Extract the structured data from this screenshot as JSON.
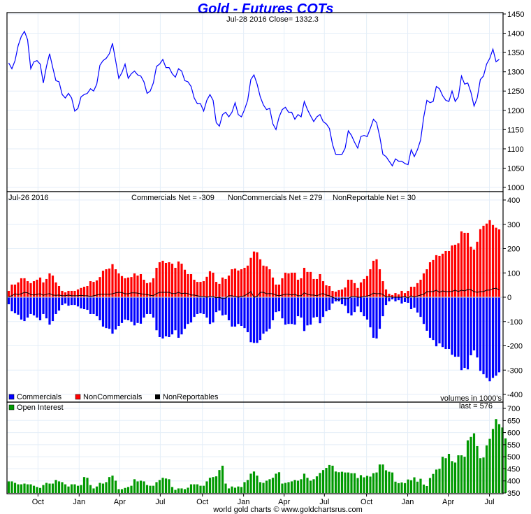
{
  "chart_data": [
    {
      "type": "line",
      "title": "Gold - Futures COTs",
      "subtitle": "Jul-28  2016   Close= 1332.3",
      "ylim": [
        1000,
        1450
      ],
      "yticks": [
        1450,
        1400,
        1350,
        1300,
        1250,
        1200,
        1150,
        1100,
        1050,
        1000
      ],
      "color": "#0000ff",
      "series": [
        {
          "name": "Gold price",
          "values": [
            1323,
            1308,
            1329,
            1368,
            1392,
            1405,
            1383,
            1308,
            1326,
            1329,
            1320,
            1271,
            1314,
            1347,
            1311,
            1277,
            1274,
            1241,
            1232,
            1244,
            1232,
            1198,
            1205,
            1235,
            1241,
            1244,
            1256,
            1250,
            1268,
            1317,
            1329,
            1335,
            1347,
            1374,
            1329,
            1283,
            1298,
            1320,
            1283,
            1295,
            1302,
            1292,
            1289,
            1274,
            1244,
            1250,
            1271,
            1314,
            1320,
            1332,
            1311,
            1311,
            1295,
            1286,
            1308,
            1302,
            1277,
            1274,
            1262,
            1232,
            1217,
            1217,
            1198,
            1226,
            1241,
            1226,
            1168,
            1159,
            1189,
            1195,
            1183,
            1195,
            1220,
            1189,
            1183,
            1202,
            1226,
            1280,
            1292,
            1268,
            1235,
            1214,
            1202,
            1205,
            1165,
            1150,
            1183,
            1202,
            1208,
            1195,
            1195,
            1177,
            1189,
            1183,
            1223,
            1202,
            1186,
            1171,
            1183,
            1189,
            1171,
            1165,
            1153,
            1111,
            1086,
            1086,
            1086,
            1102,
            1147,
            1135,
            1117,
            1102,
            1132,
            1135,
            1132,
            1153,
            1177,
            1168,
            1132,
            1086,
            1080,
            1068,
            1056,
            1074,
            1068,
            1068,
            1062,
            1059,
            1098,
            1080,
            1098,
            1123,
            1183,
            1226,
            1220,
            1223,
            1262,
            1256,
            1238,
            1226,
            1223,
            1250,
            1223,
            1235,
            1289,
            1268,
            1271,
            1247,
            1211,
            1232,
            1280,
            1289,
            1320,
            1335,
            1359,
            1326,
            1332.3
          ]
        }
      ]
    },
    {
      "type": "bar",
      "header_date": "Jul-26  2016",
      "net_labels": [
        "Commercials Net = -309",
        "NonCommercials Net = 279",
        "NonReportable Net = 30"
      ],
      "ylim": [
        -400,
        400
      ],
      "yticks": [
        400,
        300,
        200,
        100,
        0,
        -100,
        -200,
        -300,
        -400
      ],
      "note": "volumes in 1000's",
      "legend": [
        {
          "name": "Commercials",
          "color": "#0000ff"
        },
        {
          "name": "NonCommercials",
          "color": "#ff0000"
        },
        {
          "name": "NonReportables",
          "color": "#000000"
        }
      ],
      "legend_placement": "bottom-left",
      "series": [
        {
          "name": "Commercials",
          "values": [
            -29,
            -58,
            -66,
            -72,
            -92,
            -98,
            -84,
            -69,
            -75,
            -84,
            -95,
            -69,
            -87,
            -113,
            -98,
            -69,
            -55,
            -32,
            -26,
            -35,
            -32,
            -32,
            -38,
            -46,
            -49,
            -52,
            -69,
            -69,
            -78,
            -95,
            -121,
            -127,
            -130,
            -150,
            -133,
            -118,
            -106,
            -92,
            -95,
            -101,
            -116,
            -106,
            -109,
            -84,
            -69,
            -69,
            -84,
            -136,
            -164,
            -170,
            -161,
            -164,
            -153,
            -136,
            -167,
            -153,
            -130,
            -110,
            -104,
            -81,
            -69,
            -66,
            -69,
            -84,
            -110,
            -104,
            -61,
            -55,
            -75,
            -72,
            -95,
            -121,
            -121,
            -110,
            -118,
            -127,
            -144,
            -185,
            -188,
            -188,
            -176,
            -150,
            -141,
            -130,
            -95,
            -61,
            -58,
            -87,
            -113,
            -110,
            -110,
            -113,
            -78,
            -84,
            -139,
            -116,
            -113,
            -84,
            -81,
            -107,
            -81,
            -58,
            -52,
            -26,
            -17,
            -17,
            -29,
            -35,
            -66,
            -75,
            -61,
            -38,
            -61,
            -78,
            -92,
            -124,
            -167,
            -170,
            -130,
            -78,
            -32,
            -17,
            -9,
            -17,
            -12,
            -26,
            -20,
            -23,
            -49,
            -43,
            -63,
            -81,
            -110,
            -138,
            -167,
            -176,
            -202,
            -190,
            -205,
            -213,
            -213,
            -237,
            -245,
            -245,
            -300,
            -291,
            -297,
            -239,
            -219,
            -248,
            -303,
            -317,
            -332,
            -346,
            -332,
            -323,
            -309
          ]
        },
        {
          "name": "NonCommercials",
          "values": [
            26,
            52,
            52,
            61,
            78,
            78,
            66,
            58,
            66,
            72,
            81,
            61,
            75,
            98,
            89,
            61,
            46,
            26,
            20,
            26,
            26,
            26,
            32,
            38,
            43,
            46,
            66,
            63,
            69,
            83,
            109,
            115,
            118,
            136,
            115,
            98,
            87,
            78,
            81,
            83,
            98,
            89,
            95,
            72,
            58,
            61,
            78,
            121,
            144,
            150,
            141,
            144,
            138,
            121,
            147,
            138,
            113,
            95,
            95,
            72,
            63,
            63,
            66,
            84,
            107,
            101,
            63,
            55,
            81,
            75,
            89,
            115,
            118,
            110,
            115,
            121,
            130,
            162,
            188,
            185,
            156,
            130,
            127,
            115,
            81,
            52,
            52,
            78,
            101,
            98,
            101,
            101,
            72,
            78,
            121,
            104,
            104,
            75,
            75,
            95,
            66,
            49,
            46,
            26,
            23,
            29,
            32,
            40,
            72,
            72,
            58,
            38,
            61,
            75,
            87,
            115,
            150,
            156,
            115,
            66,
            32,
            14,
            9,
            17,
            12,
            26,
            17,
            26,
            43,
            43,
            58,
            72,
            98,
            115,
            144,
            153,
            173,
            170,
            179,
            190,
            190,
            213,
            216,
            222,
            271,
            265,
            265,
            208,
            196,
            228,
            280,
            294,
            303,
            317,
            297,
            286,
            279
          ]
        }
      ]
    },
    {
      "type": "bar",
      "legend": [
        {
          "name": "Open Interest",
          "color": "#009900"
        }
      ],
      "last_label": "last = 576",
      "ylim": [
        350,
        700
      ],
      "yticks": [
        700,
        650,
        600,
        550,
        500,
        450,
        400,
        350
      ],
      "series": [
        {
          "name": "Open Interest",
          "values": [
            398,
            398,
            392,
            386,
            386,
            389,
            386,
            386,
            380,
            375,
            371,
            383,
            392,
            389,
            389,
            404,
            398,
            395,
            386,
            377,
            386,
            386,
            380,
            383,
            416,
            413,
            383,
            369,
            377,
            392,
            389,
            395,
            416,
            422,
            401,
            366,
            366,
            371,
            375,
            380,
            407,
            398,
            401,
            398,
            383,
            380,
            380,
            395,
            404,
            413,
            410,
            407,
            375,
            363,
            369,
            369,
            366,
            372,
            386,
            386,
            386,
            380,
            380,
            398,
            413,
            416,
            419,
            445,
            463,
            389,
            369,
            377,
            372,
            377,
            375,
            395,
            404,
            430,
            439,
            422,
            395,
            392,
            401,
            407,
            413,
            430,
            436,
            389,
            392,
            395,
            398,
            404,
            401,
            407,
            430,
            413,
            401,
            407,
            419,
            433,
            445,
            454,
            466,
            463,
            439,
            436,
            438,
            435,
            435,
            432,
            432,
            412,
            424,
            415,
            421,
            418,
            432,
            435,
            468,
            468,
            444,
            438,
            435,
            397,
            391,
            394,
            391,
            406,
            403,
            415,
            397,
            409,
            385,
            379,
            412,
            429,
            447,
            450,
            500,
            494,
            512,
            482,
            476,
            506,
            506,
            500,
            568,
            582,
            597,
            544,
            494,
            497,
            547,
            574,
            615,
            656,
            635,
            621,
            576
          ]
        }
      ]
    }
  ],
  "x_axis": {
    "months": [
      {
        "label": "Oct",
        "bar": 9.3
      },
      {
        "label": "Jan",
        "bar": 22.4
      },
      {
        "label": "Apr",
        "bar": 35.3
      },
      {
        "label": "Jul",
        "bar": 48.2
      },
      {
        "label": "Oct",
        "bar": 61.6
      },
      {
        "label": "Jan",
        "bar": 74.7
      },
      {
        "label": "Apr",
        "bar": 87.6
      },
      {
        "label": "Jul",
        "bar": 100.4
      },
      {
        "label": "Oct",
        "bar": 113.8
      },
      {
        "label": "Jan",
        "bar": 126.9
      },
      {
        "label": "Apr",
        "bar": 139.8
      },
      {
        "label": "Jul",
        "bar": 152.9
      }
    ]
  },
  "footer": "world gold charts © www.goldchartsrus.com",
  "grid_color": "#e4eef8"
}
